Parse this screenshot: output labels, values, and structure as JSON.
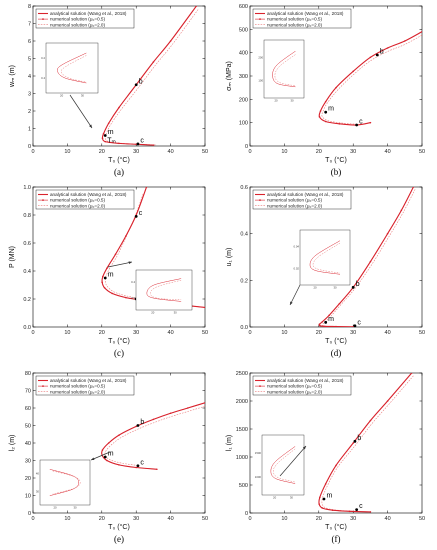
{
  "legend": {
    "entries": [
      "analytical solution (Wang et al., 2018)",
      "numerical solution (μ₀=0.5)",
      "numerical solution (μ₀=2.0)"
    ]
  },
  "colors": {
    "analytical": "#d9232d",
    "numerical_05": "#d9232d",
    "numerical_20": "#e97b7b",
    "axis": "#000000"
  },
  "chart_data": [
    {
      "id": "a",
      "panel_label": "(a)",
      "type": "line",
      "xlabel": "T₀ (°C)",
      "ylabel": "wₘ (m)",
      "xlim": [
        0,
        50
      ],
      "ylim": [
        0,
        8
      ],
      "xticks": [
        0,
        10,
        20,
        30,
        40,
        50
      ],
      "yticks": [
        0,
        1,
        2,
        3,
        4,
        5,
        6,
        7,
        8
      ],
      "legend_placement": "top-left",
      "annotations": [
        {
          "text": "b",
          "x": 30,
          "y": 3.5
        },
        {
          "text": "m",
          "x": 21,
          "y": 0.6
        },
        {
          "text": "c",
          "x": 30.5,
          "y": 0.12
        },
        {
          "text": "Tₘ",
          "x": 21,
          "y": 0.2
        }
      ],
      "inset": {
        "xticks": [
          "20",
          "30"
        ],
        "yticks": [
          "0.2",
          "0.4"
        ],
        "series": [
          {
            "x": [
              27,
              20.5,
              19.5,
              21.5,
              27
            ],
            "y": [
              0.45,
              0.3,
              0.22,
              0.14,
              0.08
            ]
          },
          {
            "x": [
              27,
              21.5,
              20.5,
              22.5,
              27
            ],
            "y": [
              0.42,
              0.28,
              0.21,
              0.14,
              0.09
            ]
          }
        ]
      },
      "series": [
        {
          "name": "analytical solution (Wang et al., 2018)",
          "x": [
            47.5,
            40,
            35,
            30,
            25,
            22,
            20.5,
            20.2,
            21,
            25,
            30,
            35
          ],
          "y": [
            8,
            6,
            4.8,
            3.5,
            2.2,
            1.3,
            0.7,
            0.45,
            0.25,
            0.15,
            0.1,
            0.05
          ]
        },
        {
          "name": "numerical solution (μ₀=0.5)",
          "x": [
            47.5,
            40,
            35,
            30,
            25,
            22,
            20.5,
            20.2,
            21,
            25,
            30,
            35
          ],
          "y": [
            8,
            6,
            4.8,
            3.5,
            2.2,
            1.3,
            0.7,
            0.45,
            0.25,
            0.15,
            0.1,
            0.05
          ]
        },
        {
          "name": "numerical solution (μ₀=2.0)",
          "x": [
            48,
            40.5,
            35.5,
            30.5,
            25.5,
            22.5,
            21.2,
            21,
            22,
            26,
            31,
            36
          ],
          "y": [
            7.8,
            5.8,
            4.6,
            3.3,
            2.05,
            1.2,
            0.65,
            0.45,
            0.25,
            0.15,
            0.1,
            0.06
          ]
        }
      ]
    },
    {
      "id": "b",
      "panel_label": "(b)",
      "type": "line",
      "xlabel": "T₀ (°C)",
      "ylabel": "σₘ (MPa)",
      "xlim": [
        0,
        50
      ],
      "ylim": [
        0,
        600
      ],
      "xticks": [
        0,
        10,
        20,
        30,
        40,
        50
      ],
      "yticks": [
        0,
        100,
        200,
        300,
        400,
        500,
        600
      ],
      "legend_placement": "top-left",
      "annotations": [
        {
          "text": "b",
          "x": 37,
          "y": 390
        },
        {
          "text": "m",
          "x": 22,
          "y": 145
        },
        {
          "text": "c",
          "x": 31,
          "y": 90
        }
      ],
      "inset": {
        "xticks": [
          "20",
          "30"
        ],
        "yticks": [
          "200",
          "100"
        ],
        "series": [
          {
            "x": [
              30,
              22,
              20,
              22,
              30
            ],
            "y": [
              200,
              160,
              130,
              105,
              95
            ]
          },
          {
            "x": [
              30,
              23,
              21,
              23,
              30
            ],
            "y": [
              190,
              155,
              128,
              108,
              98
            ]
          }
        ]
      },
      "series": [
        {
          "name": "analytical solution (Wang et al., 2018)",
          "x": [
            50,
            45,
            40,
            35,
            30,
            25,
            22,
            20.5,
            20.2,
            22,
            26,
            31,
            35
          ],
          "y": [
            490,
            450,
            420,
            380,
            320,
            250,
            190,
            150,
            125,
            105,
            95,
            90,
            100
          ]
        },
        {
          "name": "numerical solution (μ₀=0.5)",
          "x": [
            50,
            45,
            40,
            35,
            30,
            25,
            22,
            20.5,
            20.2,
            22,
            26,
            31,
            35
          ],
          "y": [
            490,
            450,
            420,
            380,
            320,
            250,
            190,
            150,
            125,
            105,
            95,
            90,
            100
          ]
        },
        {
          "name": "numerical solution (μ₀=2.0)",
          "x": [
            50,
            45,
            40,
            35,
            30,
            25.5,
            22.5,
            21.2,
            21,
            22.8,
            27,
            31.5
          ],
          "y": [
            475,
            435,
            405,
            365,
            305,
            240,
            185,
            148,
            126,
            108,
            98,
            93
          ]
        }
      ]
    },
    {
      "id": "c",
      "panel_label": "(c)",
      "type": "line",
      "xlabel": "T₀ (°C)",
      "ylabel": "P (MN)",
      "xlim": [
        0,
        50
      ],
      "ylim": [
        0,
        1.0
      ],
      "xticks": [
        0,
        10,
        20,
        30,
        40,
        50
      ],
      "yticks": [
        0.0,
        0.2,
        0.4,
        0.6,
        0.8,
        1.0
      ],
      "legend_placement": "top-left",
      "annotations": [
        {
          "text": "c",
          "x": 30,
          "y": 0.79
        },
        {
          "text": "m",
          "x": 21,
          "y": 0.35
        },
        {
          "text": "b",
          "x": 30,
          "y": 0.2
        }
      ],
      "inset": {
        "xticks": [
          "20",
          "30"
        ],
        "yticks": [
          "0.4",
          "0.3"
        ],
        "series": [
          {
            "x": [
              30,
              22,
              20,
              22,
              30
            ],
            "y": [
              0.42,
              0.38,
              0.33,
              0.3,
              0.28
            ]
          },
          {
            "x": [
              30,
              23,
              21,
              23,
              30
            ],
            "y": [
              0.41,
              0.37,
              0.33,
              0.3,
              0.29
            ]
          }
        ]
      },
      "series": [
        {
          "name": "analytical solution (Wang et al., 2018)",
          "x": [
            33,
            30,
            27,
            24,
            21.5,
            20.3,
            20.1,
            20.8,
            23,
            27,
            32,
            38,
            44,
            50
          ],
          "y": [
            1.0,
            0.8,
            0.65,
            0.52,
            0.42,
            0.36,
            0.32,
            0.28,
            0.24,
            0.21,
            0.19,
            0.17,
            0.155,
            0.14
          ]
        },
        {
          "name": "numerical solution (μ₀=0.5)",
          "x": [
            33,
            30,
            27,
            24,
            21.5,
            20.3,
            20.1,
            20.8,
            23,
            27,
            32,
            38,
            44,
            50
          ],
          "y": [
            1.0,
            0.8,
            0.65,
            0.52,
            0.42,
            0.36,
            0.32,
            0.28,
            0.24,
            0.21,
            0.19,
            0.17,
            0.155,
            0.14
          ]
        },
        {
          "name": "numerical solution (μ₀=2.0)",
          "x": [
            32,
            29.5,
            27,
            24.5,
            22.3,
            21.2,
            21.1,
            21.6,
            23.6,
            27.5,
            32
          ],
          "y": [
            0.95,
            0.78,
            0.64,
            0.51,
            0.42,
            0.36,
            0.32,
            0.29,
            0.25,
            0.22,
            0.2
          ]
        }
      ]
    },
    {
      "id": "d",
      "panel_label": "(d)",
      "type": "line",
      "xlabel": "T₀ (°C)",
      "ylabel": "u₁ (m)",
      "xlim": [
        0,
        50
      ],
      "ylim": [
        0,
        0.6
      ],
      "xticks": [
        0,
        10,
        20,
        30,
        40,
        50
      ],
      "yticks": [
        0.0,
        0.2,
        0.4,
        0.6
      ],
      "legend_placement": "top-left",
      "annotations": [
        {
          "text": "b",
          "x": 30,
          "y": 0.17
        },
        {
          "text": "m",
          "x": 22,
          "y": 0.02
        },
        {
          "text": "c",
          "x": 30.5,
          "y": 0.005
        }
      ],
      "inset": {
        "xticks": [
          "20",
          "30"
        ],
        "yticks": [
          "0.04",
          "0.02"
        ],
        "series": [
          {
            "x": [
              30,
              22,
              20,
              22,
              30
            ],
            "y": [
              0.04,
              0.028,
              0.02,
              0.015,
              0.012
            ]
          },
          {
            "x": [
              30,
              23,
              21,
              23,
              30
            ],
            "y": [
              0.038,
              0.027,
              0.02,
              0.016,
              0.013
            ]
          }
        ]
      },
      "series": [
        {
          "name": "analytical solution (Wang et al., 2018)",
          "x": [
            47.5,
            44,
            40,
            35,
            30,
            26,
            23,
            21,
            20.2,
            20.3,
            21.5,
            25,
            30
          ],
          "y": [
            0.6,
            0.5,
            0.4,
            0.28,
            0.17,
            0.1,
            0.05,
            0.022,
            0.012,
            0.006,
            0.003,
            0.002,
            0.001
          ]
        },
        {
          "name": "numerical solution (μ₀=0.5)",
          "x": [
            47.5,
            44,
            40,
            35,
            30,
            26,
            23,
            21,
            20.2,
            20.3,
            21.5,
            25,
            30
          ],
          "y": [
            0.6,
            0.5,
            0.4,
            0.28,
            0.17,
            0.1,
            0.05,
            0.022,
            0.012,
            0.006,
            0.003,
            0.002,
            0.001
          ]
        },
        {
          "name": "numerical solution (μ₀=2.0)",
          "x": [
            48,
            44.5,
            40.5,
            35.5,
            30.5,
            26.5,
            23.6,
            21.8,
            21.1,
            21.2,
            22.5,
            26
          ],
          "y": [
            0.59,
            0.49,
            0.39,
            0.27,
            0.165,
            0.097,
            0.048,
            0.021,
            0.012,
            0.006,
            0.003,
            0.002
          ]
        }
      ]
    },
    {
      "id": "e",
      "panel_label": "(e)",
      "type": "line",
      "xlabel": "T₀ (°C)",
      "ylabel": "l₂ (m)",
      "xlim": [
        0,
        50
      ],
      "ylim": [
        0,
        80
      ],
      "xticks": [
        0,
        10,
        20,
        30,
        40,
        50
      ],
      "yticks": [
        0,
        10,
        20,
        30,
        40,
        50,
        60,
        70,
        80
      ],
      "legend_placement": "top-left",
      "annotations": [
        {
          "text": "b",
          "x": 30.5,
          "y": 50
        },
        {
          "text": "m",
          "x": 21,
          "y": 32
        },
        {
          "text": "c",
          "x": 30.5,
          "y": 27
        }
      ],
      "inset": {
        "xticks": [
          "20",
          "30"
        ],
        "yticks": [
          "40",
          "30"
        ],
        "series": [
          {
            "x": [
              20,
              28,
              30,
              28,
              20
            ],
            "y": [
              40,
              36,
              32,
              28,
              24
            ]
          },
          {
            "x": [
              21,
              28.5,
              30.5,
              28.5,
              21
            ],
            "y": [
              39,
              35.5,
              32,
              28.5,
              25
            ]
          }
        ]
      },
      "series": [
        {
          "name": "analytical solution (Wang et al., 2018)",
          "x": [
            50,
            45,
            40,
            35,
            30,
            25,
            22,
            20.2,
            20.1,
            21.5,
            25,
            30,
            36
          ],
          "y": [
            63,
            60,
            57,
            53.5,
            49.5,
            44.5,
            40,
            36,
            33,
            30,
            27.5,
            26,
            25
          ]
        },
        {
          "name": "numerical solution (μ₀=0.5)",
          "x": [
            50,
            45,
            40,
            35,
            30,
            25,
            22,
            20.2,
            20.1,
            21.5,
            25,
            30,
            36
          ],
          "y": [
            63,
            60,
            57,
            53.5,
            49.5,
            44.5,
            40,
            36,
            33,
            30,
            27.5,
            26,
            25
          ]
        },
        {
          "name": "numerical solution (μ₀=2.0)",
          "x": [
            50,
            45,
            40,
            35,
            30,
            25.5,
            22.8,
            21.2,
            21,
            22.3,
            25.8,
            31
          ],
          "y": [
            61,
            58,
            55,
            51.5,
            47.5,
            43,
            39,
            35.5,
            33,
            30.5,
            28.5,
            27
          ]
        }
      ]
    },
    {
      "id": "f",
      "panel_label": "(f)",
      "type": "line",
      "xlabel": "T₀ (°C)",
      "ylabel": "l₁ (m)",
      "xlim": [
        0,
        50
      ],
      "ylim": [
        0,
        2500
      ],
      "xticks": [
        0,
        10,
        20,
        30,
        40,
        50
      ],
      "yticks": [
        0,
        500,
        1000,
        1500,
        2000,
        2500
      ],
      "legend_placement": "top-left",
      "annotations": [
        {
          "text": "b",
          "x": 30.5,
          "y": 1280
        },
        {
          "text": "m",
          "x": 21.5,
          "y": 250
        },
        {
          "text": "c",
          "x": 31,
          "y": 60
        }
      ],
      "inset": {
        "xticks": [
          "20",
          "30"
        ],
        "yticks": [
          "1500",
          "1000"
        ],
        "series": [
          {
            "x": [
              30,
              22,
              20,
              22,
              30
            ],
            "y": [
              1500,
              1200,
              1000,
              850,
              750
            ]
          },
          {
            "x": [
              30,
              23,
              21,
              23,
              30
            ],
            "y": [
              1450,
              1170,
              1000,
              870,
              780
            ]
          }
        ]
      },
      "series": [
        {
          "name": "analytical solution (Wang et al., 2018)",
          "x": [
            47,
            40,
            35,
            30,
            25,
            22,
            20.3,
            20.1,
            21,
            24,
            29,
            35
          ],
          "y": [
            2500,
            2000,
            1650,
            1250,
            850,
            520,
            280,
            160,
            90,
            50,
            30,
            20
          ]
        },
        {
          "name": "numerical solution (μ₀=0.5)",
          "x": [
            47,
            40,
            35,
            30,
            25,
            22,
            20.3,
            20.1,
            21,
            24,
            29,
            35
          ],
          "y": [
            2500,
            2000,
            1650,
            1250,
            850,
            520,
            280,
            160,
            90,
            50,
            30,
            20
          ]
        },
        {
          "name": "numerical solution (μ₀=2.0)",
          "x": [
            47.5,
            40.5,
            35.5,
            30.5,
            25.5,
            22.6,
            21.1,
            21,
            22,
            25,
            30
          ],
          "y": [
            2450,
            1950,
            1600,
            1200,
            820,
            500,
            275,
            160,
            92,
            52,
            32
          ]
        }
      ]
    }
  ]
}
